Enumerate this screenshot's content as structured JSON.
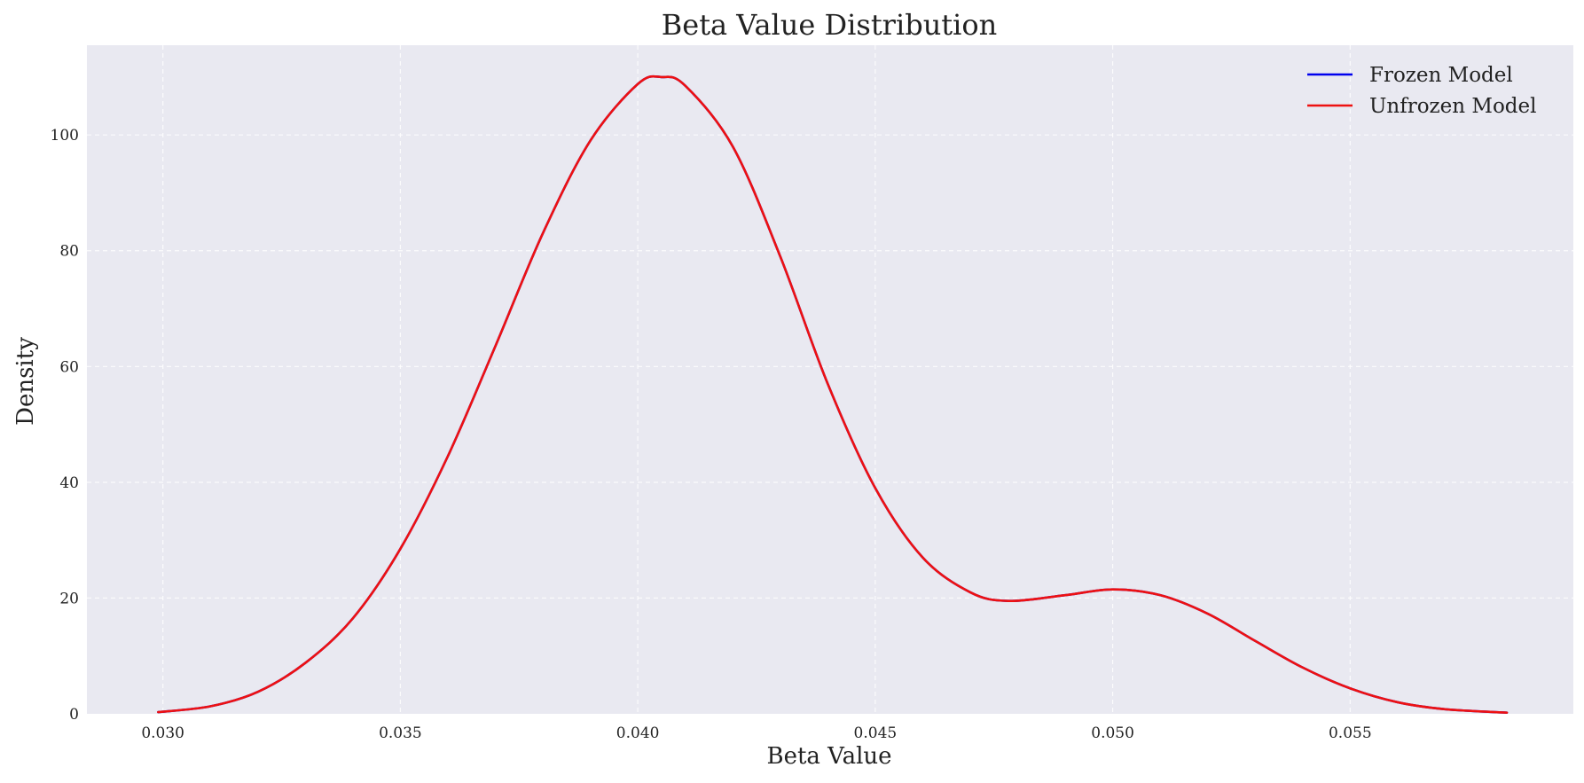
{
  "chart_data": {
    "type": "line",
    "title": "Beta Value Distribution",
    "xlabel": "Beta Value",
    "ylabel": "Density",
    "xlim": [
      0.0284,
      0.0597
    ],
    "ylim": [
      0,
      115.5
    ],
    "xticks": [
      "0.030",
      "0.035",
      "0.040",
      "0.045",
      "0.050",
      "0.055"
    ],
    "xtick_values": [
      0.03,
      0.035,
      0.04,
      0.045,
      0.05,
      0.055
    ],
    "yticks": [
      "0",
      "20",
      "40",
      "60",
      "80",
      "100"
    ],
    "ytick_values": [
      0,
      20,
      40,
      60,
      80,
      100
    ],
    "grid": true,
    "legend_position": "top-right",
    "x": [
      0.0299,
      0.031,
      0.032,
      0.033,
      0.034,
      0.035,
      0.036,
      0.037,
      0.038,
      0.039,
      0.04,
      0.0405,
      0.041,
      0.042,
      0.043,
      0.044,
      0.045,
      0.046,
      0.047,
      0.0478,
      0.049,
      0.05,
      0.051,
      0.052,
      0.053,
      0.054,
      0.055,
      0.056,
      0.057,
      0.0583
    ],
    "series": [
      {
        "name": "Frozen Model",
        "color": "#0000ee",
        "values": [
          0.3,
          1.3,
          3.8,
          8.8,
          16.5,
          28.5,
          44.5,
          63.5,
          83.0,
          99.0,
          108.8,
          110.0,
          108.5,
          98.0,
          79.0,
          57.0,
          39.0,
          27.0,
          21.0,
          19.5,
          20.5,
          21.5,
          20.5,
          17.3,
          12.6,
          8.0,
          4.4,
          2.0,
          0.8,
          0.2
        ]
      },
      {
        "name": "Unfrozen Model",
        "color": "#ee1111",
        "values": [
          0.3,
          1.3,
          3.8,
          8.8,
          16.5,
          28.5,
          44.5,
          63.5,
          83.0,
          99.0,
          108.8,
          110.0,
          108.5,
          98.0,
          79.0,
          57.0,
          39.0,
          27.0,
          21.0,
          19.5,
          20.5,
          21.5,
          20.5,
          17.3,
          12.6,
          8.0,
          4.4,
          2.0,
          0.8,
          0.2
        ]
      }
    ]
  }
}
